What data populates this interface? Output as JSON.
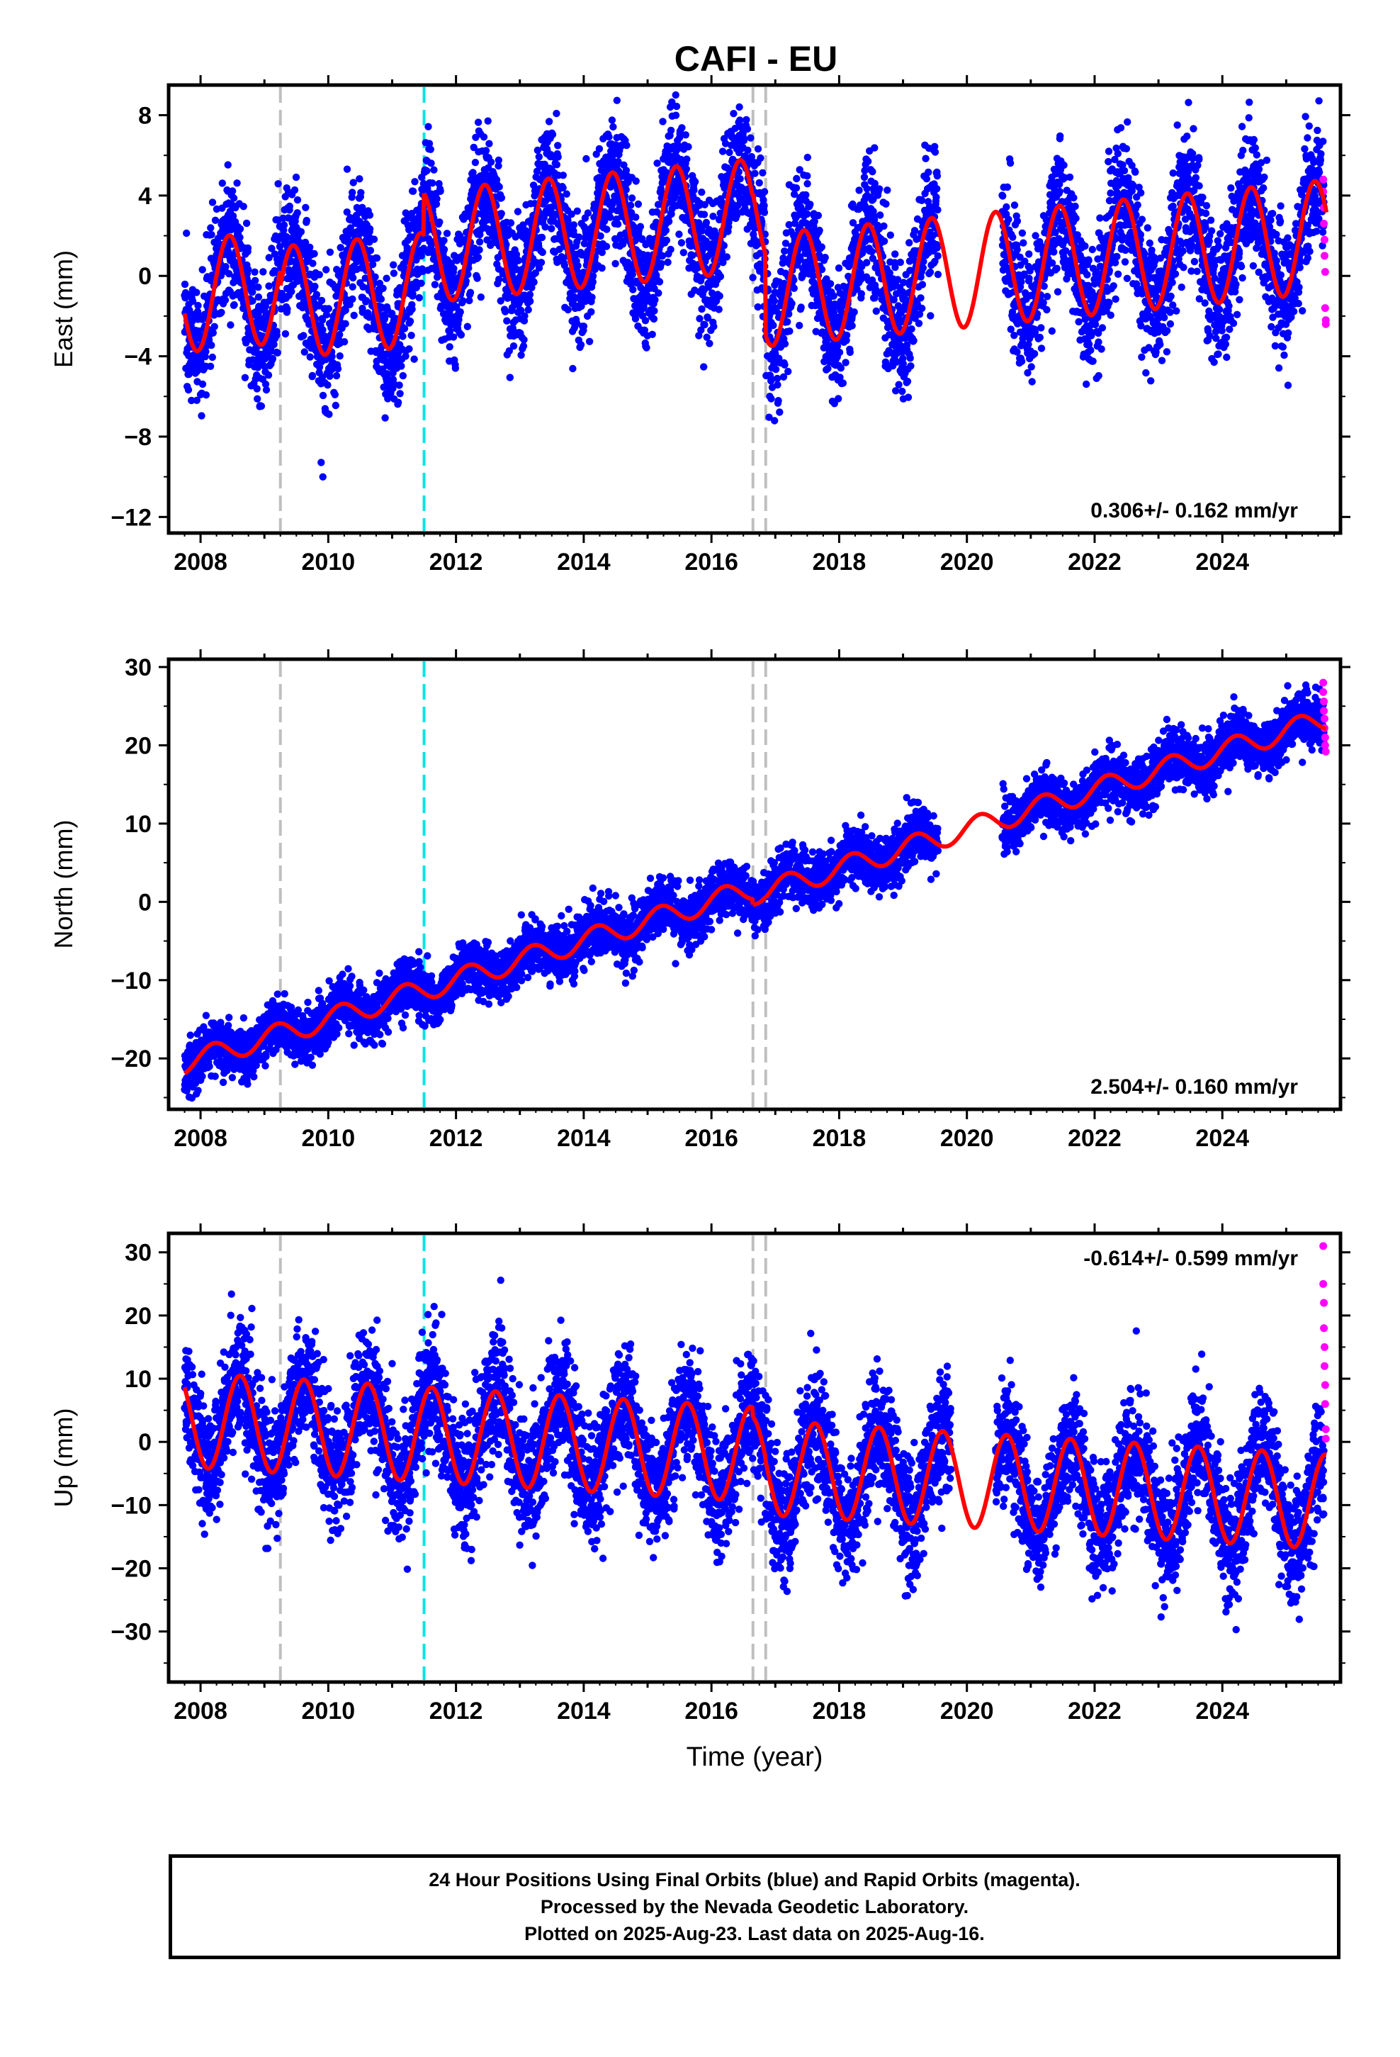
{
  "title": "CAFI - EU",
  "footer": {
    "line1": "24 Hour Positions Using Final Orbits (blue) and Rapid Orbits (magenta).",
    "line2": "Processed by the Nevada Geodetic Laboratory.",
    "line3": "Plotted on 2025-Aug-23. Last data on 2025-Aug-16."
  },
  "colors": {
    "final_points": "#0000ff",
    "rapid_points": "#ff00ff",
    "model_fit": "#ff0000",
    "offset_equipment": "#bfbfbf",
    "offset_earthquake": "#00e5e5"
  },
  "chart_data": [
    {
      "type": "scatter",
      "component": "east",
      "ylabel": "East (mm)",
      "xlabel": "",
      "xlim": [
        2007.5,
        2025.85
      ],
      "ylim": [
        -12.8,
        9.5
      ],
      "xticks": [
        2008,
        2010,
        2012,
        2014,
        2016,
        2018,
        2020,
        2022,
        2024
      ],
      "xtick_labels": [
        "2008",
        "2010",
        "2012",
        "2014",
        "2016",
        "2018",
        "2020",
        "2022",
        "2024"
      ],
      "yticks": [
        8,
        4,
        0,
        -4,
        -8,
        -12
      ],
      "ytick_labels": [
        "8",
        "4",
        "0",
        "−4",
        "−8",
        "−12"
      ],
      "rate_label": "0.306+/- 0.162 mm/yr",
      "rate_position": "bottom-right",
      "data_span": [
        2007.75,
        2025.63
      ],
      "gap": [
        2019.55,
        2020.55
      ],
      "offsets_equipment": [
        2009.25,
        2016.65,
        2016.85
      ],
      "offsets_earthquake": [
        2011.5
      ],
      "model": {
        "rate_mm_per_yr": 0.306,
        "annual_amplitude_mm": 2.8,
        "annual_peak_fraction": 0.45,
        "segments": [
          {
            "start": 2007.75,
            "end": 2009.25,
            "level": -1.0
          },
          {
            "start": 2009.25,
            "end": 2011.5,
            "level": -1.8
          },
          {
            "start": 2011.5,
            "end": 2016.65,
            "level": 0.3
          },
          {
            "start": 2016.65,
            "end": 2016.85,
            "level": 0.5
          },
          {
            "start": 2016.85,
            "end": 2025.63,
            "level": -3.5
          }
        ]
      },
      "scatter_sigma_mm": 1.6,
      "rapid_points": [
        [
          2025.58,
          4.8
        ],
        [
          2025.58,
          4.2
        ],
        [
          2025.59,
          3.4
        ],
        [
          2025.59,
          2.6
        ],
        [
          2025.6,
          1.8
        ],
        [
          2025.6,
          1.0
        ],
        [
          2025.61,
          0.2
        ],
        [
          2025.61,
          -1.6
        ],
        [
          2025.62,
          -2.2
        ],
        [
          2025.62,
          -2.4
        ]
      ]
    },
    {
      "type": "scatter",
      "component": "north",
      "ylabel": "North (mm)",
      "xlabel": "",
      "xlim": [
        2007.5,
        2025.85
      ],
      "ylim": [
        -26.5,
        31.0
      ],
      "xticks": [
        2008,
        2010,
        2012,
        2014,
        2016,
        2018,
        2020,
        2022,
        2024
      ],
      "xtick_labels": [
        "2008",
        "2010",
        "2012",
        "2014",
        "2016",
        "2018",
        "2020",
        "2022",
        "2024"
      ],
      "yticks": [
        30,
        20,
        10,
        0,
        -10,
        -20
      ],
      "ytick_labels": [
        "30",
        "20",
        "10",
        "0",
        "−10",
        "−20"
      ],
      "rate_label": "2.504+/- 0.160 mm/yr",
      "rate_position": "bottom-right",
      "data_span": [
        2007.75,
        2025.63
      ],
      "gap": [
        2019.55,
        2020.55
      ],
      "offsets_equipment": [
        2009.25,
        2016.65,
        2016.85
      ],
      "offsets_earthquake": [
        2011.5
      ],
      "model": {
        "rate_mm_per_yr": 2.504,
        "annual_amplitude_mm": 1.4,
        "annual_peak_fraction": 0.2,
        "segments": [
          {
            "start": 2007.75,
            "end": 2016.65,
            "level": -20.6
          },
          {
            "start": 2016.65,
            "end": 2016.85,
            "level": -21.3
          },
          {
            "start": 2016.85,
            "end": 2025.63,
            "level": -21.4
          }
        ]
      },
      "scatter_sigma_mm": 1.7,
      "rapid_points": [
        [
          2025.58,
          28.0
        ],
        [
          2025.58,
          26.8
        ],
        [
          2025.59,
          25.6
        ],
        [
          2025.59,
          24.4
        ],
        [
          2025.6,
          23.4
        ],
        [
          2025.6,
          22.2
        ],
        [
          2025.61,
          21.0
        ],
        [
          2025.61,
          20.0
        ],
        [
          2025.62,
          19.2
        ]
      ]
    },
    {
      "type": "scatter",
      "component": "up",
      "ylabel": "Up (mm)",
      "xlabel": "Time (year)",
      "xlim": [
        2007.5,
        2025.85
      ],
      "ylim": [
        -38.0,
        33.0
      ],
      "xticks": [
        2008,
        2010,
        2012,
        2014,
        2016,
        2018,
        2020,
        2022,
        2024
      ],
      "xtick_labels": [
        "2008",
        "2010",
        "2012",
        "2014",
        "2016",
        "2018",
        "2020",
        "2022",
        "2024"
      ],
      "yticks": [
        30,
        20,
        10,
        0,
        -10,
        -20,
        -30
      ],
      "ytick_labels": [
        "30",
        "20",
        "10",
        "0",
        "−10",
        "−20",
        "−30"
      ],
      "rate_label": "-0.614+/- 0.599 mm/yr",
      "rate_position": "top-right",
      "data_span": [
        2007.75,
        2025.63
      ],
      "gap": [
        2019.75,
        2020.45
      ],
      "offsets_equipment": [
        2009.25,
        2016.65,
        2016.85
      ],
      "offsets_earthquake": [
        2011.5
      ],
      "model": {
        "rate_mm_per_yr": -0.614,
        "annual_amplitude_mm": 7.5,
        "annual_peak_fraction": 0.62,
        "segments": [
          {
            "start": 2007.75,
            "end": 2016.65,
            "level": 3.5
          },
          {
            "start": 2016.65,
            "end": 2016.85,
            "level": 2.0
          },
          {
            "start": 2016.85,
            "end": 2025.63,
            "level": 1.5
          }
        ]
      },
      "scatter_sigma_mm": 4.8,
      "rapid_points": [
        [
          2025.58,
          31.0
        ],
        [
          2025.58,
          25.0
        ],
        [
          2025.59,
          22.0
        ],
        [
          2025.59,
          18.0
        ],
        [
          2025.6,
          15.0
        ],
        [
          2025.6,
          12.0
        ],
        [
          2025.61,
          9.0
        ],
        [
          2025.61,
          6.0
        ],
        [
          2025.62,
          2.0
        ],
        [
          2025.62,
          0.5
        ]
      ]
    }
  ]
}
